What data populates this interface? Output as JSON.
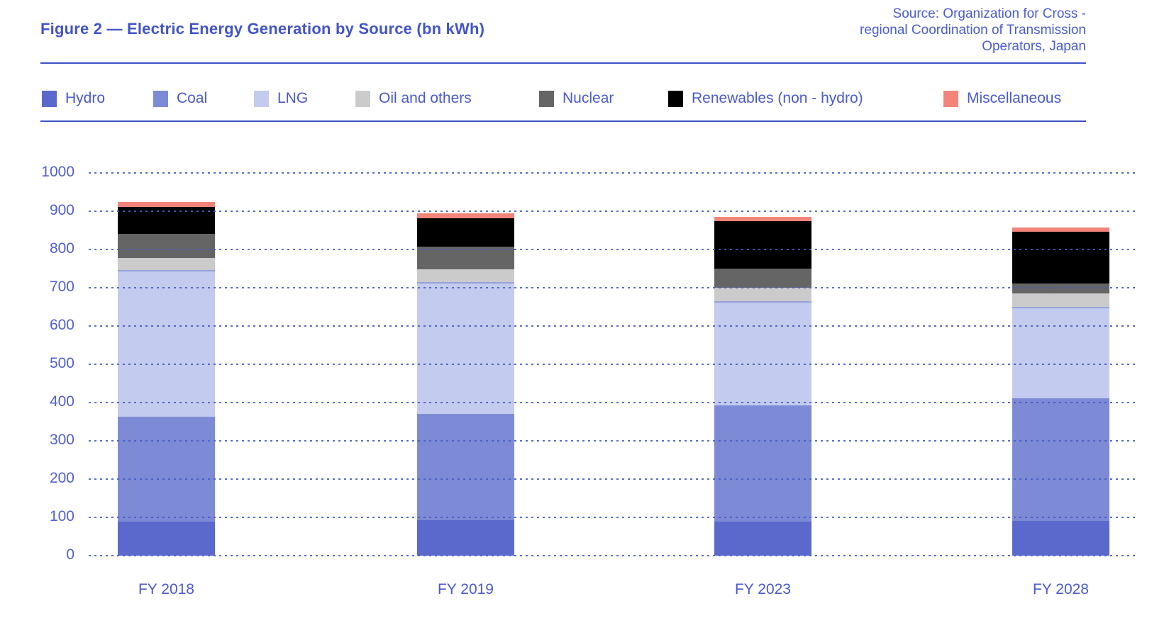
{
  "title": "Figure 2 — Electric Energy Generation by Source (bn kWh)",
  "source": {
    "lines": [
      "Source: Organization for Cross -",
      "regional Coordination of Transmission",
      "Operators, Japan"
    ]
  },
  "colors": {
    "text_blue": "#4a5ad0",
    "rule_blue": "#3f51c8",
    "gridline_blue": "#485cc4"
  },
  "chart_data": {
    "type": "bar",
    "stacked": true,
    "title": "Electric Energy Generation by Source (bn kWh)",
    "categories": [
      "FY 2018",
      "FY 2019",
      "FY 2023",
      "FY 2028"
    ],
    "series": [
      {
        "name": "Hydro",
        "color": "#5b69cd",
        "values": [
          89,
          92,
          88,
          90
        ]
      },
      {
        "name": "Coal",
        "color": "#7d8bd6",
        "values": [
          274,
          279,
          305,
          322
        ]
      },
      {
        "name": "LNG",
        "color": "#c3cbee",
        "border_top": "#95a1dc",
        "values": [
          384,
          343,
          272,
          238
        ]
      },
      {
        "name": "Oil and others",
        "color": "#cbcbcb",
        "values": [
          30,
          35,
          35,
          35
        ]
      },
      {
        "name": "Nuclear",
        "color": "#656565",
        "values": [
          64,
          59,
          50,
          27
        ]
      },
      {
        "name": "Renewables (non - hydro)",
        "color": "#000000",
        "values": [
          71,
          74,
          124,
          135
        ]
      },
      {
        "name": "Miscellaneous",
        "color": "#f2847a",
        "values": [
          13,
          12,
          11,
          10
        ]
      }
    ],
    "totals": [
      925,
      894,
      885,
      857
    ],
    "ylabel": "",
    "xlabel": "",
    "ylim": [
      0,
      1000
    ],
    "ytick_step": 100,
    "grid": true,
    "gridline_style": "dotted",
    "legend_position": "top"
  }
}
